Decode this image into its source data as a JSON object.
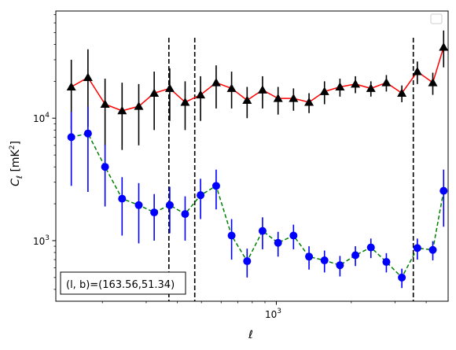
{
  "chart_data": {
    "type": "line",
    "xlabel": "ℓ",
    "ylabel_main": "C",
    "ylabel_sub": "ℓ",
    "ylabel_unit": "[mK",
    "ylabel_unit_sup": "2",
    "ylabel_unit_end": "]",
    "x_scale": "log",
    "y_scale": "log",
    "xlim": [
      130,
      4900
    ],
    "ylim": [
      320,
      75000
    ],
    "x_major_ticks": [
      {
        "value": 1000,
        "base": "10",
        "exp": "3"
      }
    ],
    "x_minor_ticks": [
      200,
      300,
      400,
      500,
      600,
      700,
      800,
      900,
      2000,
      3000,
      4000
    ],
    "y_major_ticks": [
      {
        "value": 1000,
        "base": "10",
        "exp": "3"
      },
      {
        "value": 10000,
        "base": "10",
        "exp": "4"
      }
    ],
    "y_minor_ticks": [
      400,
      500,
      600,
      700,
      800,
      900,
      2000,
      3000,
      4000,
      5000,
      6000,
      7000,
      8000,
      9000,
      20000,
      30000,
      40000,
      50000,
      60000,
      70000
    ],
    "vlines": [
      370,
      470,
      3550
    ],
    "legend": "top-right (empty)",
    "annotation": "(l, b)=(163.56,51.34)",
    "colors": {
      "black_series_line": "#ff0000",
      "black_series_marker": "#000000",
      "blue_series_line": "#008000",
      "blue_series_marker": "#0000ff",
      "vline": "#000000"
    },
    "series": [
      {
        "marker": "triangle",
        "x": [
          150,
          175,
          205,
          240,
          280,
          323,
          373,
          430,
          496,
          573,
          661,
          763,
          880,
          1016,
          1172,
          1353,
          1561,
          1801,
          2078,
          2398,
          2767,
          3193,
          3685,
          4252,
          4700
        ],
        "y": [
          18000,
          21500,
          13000,
          11500,
          12500,
          16000,
          17500,
          13500,
          15500,
          19500,
          17500,
          14000,
          17000,
          14500,
          14500,
          13500,
          16500,
          18000,
          19000,
          17500,
          19500,
          16000,
          24000,
          19500,
          38000
        ],
        "yerr_low": [
          10000,
          13000,
          7000,
          6000,
          6500,
          8000,
          8000,
          5500,
          6000,
          7500,
          5500,
          4000,
          5000,
          3800,
          3000,
          2500,
          3500,
          3000,
          3000,
          2500,
          3000,
          2500,
          5000,
          4000,
          12000
        ],
        "yerr_high": [
          12000,
          15000,
          8000,
          8000,
          6500,
          8000,
          8000,
          6500,
          6500,
          7500,
          6500,
          4000,
          5000,
          3500,
          3000,
          2500,
          3500,
          3000,
          3000,
          2500,
          3000,
          2500,
          5000,
          4000,
          14000
        ]
      },
      {
        "marker": "circle",
        "x": [
          150,
          175,
          205,
          240,
          280,
          323,
          373,
          430,
          496,
          573,
          661,
          763,
          880,
          1016,
          1172,
          1353,
          1561,
          1801,
          2078,
          2398,
          2767,
          3193,
          3685,
          4252,
          4700
        ],
        "y": [
          7000,
          7500,
          4000,
          2200,
          1950,
          1700,
          1950,
          1650,
          2350,
          2800,
          1100,
          680,
          1200,
          960,
          1100,
          740,
          690,
          630,
          760,
          880,
          670,
          500,
          870,
          840,
          2550
        ],
        "yerr_low": [
          4200,
          5000,
          2100,
          1100,
          1000,
          700,
          800,
          650,
          850,
          1000,
          400,
          180,
          350,
          220,
          250,
          160,
          140,
          120,
          140,
          160,
          120,
          90,
          170,
          150,
          1250
        ],
        "yerr_high": [
          4200,
          5000,
          2100,
          1100,
          1000,
          700,
          800,
          650,
          850,
          1000,
          400,
          180,
          350,
          220,
          250,
          160,
          140,
          120,
          140,
          160,
          120,
          90,
          170,
          150,
          1250
        ]
      }
    ]
  }
}
